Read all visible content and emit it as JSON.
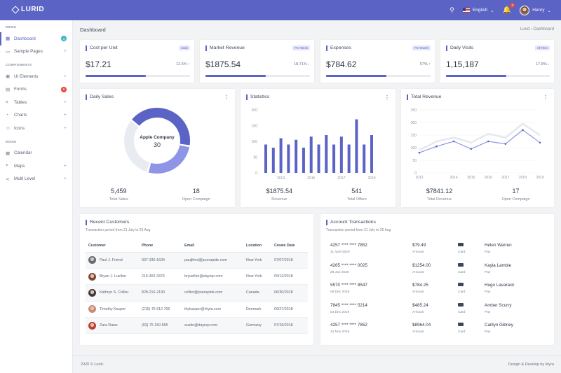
{
  "app": {
    "name": "LURID"
  },
  "topbar": {
    "language": "English",
    "notification_count": "3",
    "user": "Henry"
  },
  "sidebar": {
    "sections": [
      {
        "title": "MENU",
        "items": [
          {
            "label": "Dashboard",
            "icon": "grid-icon",
            "pill": "3",
            "pill_color": "#36b9cc"
          },
          {
            "label": "Sample Pages",
            "icon": "file-icon",
            "right": "+"
          }
        ]
      },
      {
        "title": "COMPONENTS",
        "items": [
          {
            "label": "UI Elements",
            "icon": "briefcase-icon",
            "right": "+"
          },
          {
            "label": "Forms",
            "icon": "clipboard-icon",
            "pill": "6",
            "pill_color": "#e74c3c"
          },
          {
            "label": "Tables",
            "icon": "list-icon",
            "right": "+"
          },
          {
            "label": "Charts",
            "icon": "pie-chart-icon",
            "right": "+"
          },
          {
            "label": "Icons",
            "icon": "smile-icon",
            "right": "+"
          }
        ]
      },
      {
        "title": "MORE",
        "items": [
          {
            "label": "Calendar",
            "icon": "calendar-icon"
          },
          {
            "label": "Maps",
            "icon": "map-icon",
            "right": "+"
          },
          {
            "label": "Multi Level",
            "icon": "share-icon",
            "right": "+"
          }
        ]
      }
    ]
  },
  "page": {
    "title": "Dashboard",
    "breadcrumb": [
      "Lurid",
      "Dashboard"
    ]
  },
  "stats": [
    {
      "title": "Cost per Unit",
      "badge": "Daily",
      "value": "$17.21",
      "pct": "12.5%",
      "trend": "up",
      "progress": 0.58
    },
    {
      "title": "Market Revenue",
      "badge": "Per Week",
      "value": "$1875.54",
      "pct": "18.71%",
      "trend": "down",
      "progress": 0.58
    },
    {
      "title": "Expenses",
      "badge": "Per Month",
      "value": "$784.62",
      "pct": "57%",
      "trend": "up",
      "progress": 0.58
    },
    {
      "title": "Daily Visits",
      "badge": "All Time",
      "value": "1,15,187",
      "pct": "17.8%",
      "trend": "down",
      "progress": 0.58
    }
  ],
  "daily_sales": {
    "title": "Daily Sales",
    "center_label": "Apple Company",
    "center_value": "30",
    "foot": [
      {
        "num": "5,459",
        "label": "Total Sales"
      },
      {
        "num": "18",
        "label": "Open Compaign"
      }
    ]
  },
  "statistics": {
    "title": "Statistics",
    "foot": [
      {
        "num": "$1875.54",
        "label": "Revenue"
      },
      {
        "num": "541",
        "label": "Total Offers"
      }
    ]
  },
  "total_revenue": {
    "title": "Total Revenue",
    "foot": [
      {
        "num": "$7841.12",
        "label": "Total Revenue"
      },
      {
        "num": "17",
        "label": "Open Compaign"
      }
    ]
  },
  "chart_data": [
    {
      "type": "pie",
      "title": "Daily Sales",
      "values": [
        42,
        27,
        31
      ],
      "colors": [
        "#5b63c5",
        "#8f95e6",
        "#e9ebf3"
      ]
    },
    {
      "type": "bar",
      "title": "Statistics",
      "x": [
        2012,
        2012.5,
        2013,
        2013.5,
        2014,
        2014.5,
        2015,
        2015.5,
        2016,
        2016.5,
        2017,
        2017.5,
        2018,
        2018.5,
        2019
      ],
      "values": [
        90,
        80,
        110,
        90,
        105,
        80,
        115,
        90,
        120,
        90,
        115,
        90,
        170,
        90,
        120
      ],
      "xticks": [
        2013,
        2015,
        2017,
        2019
      ],
      "yticks": [
        0,
        50,
        100,
        150,
        200
      ],
      "ylim": [
        0,
        200
      ],
      "color": "#5b63c5"
    },
    {
      "type": "line",
      "title": "Total Revenue",
      "x": [
        2012,
        2013,
        2014,
        2015,
        2016,
        2017,
        2018,
        2019
      ],
      "series": [
        {
          "values": [
            90,
            125,
            140,
            120,
            155,
            140,
            195,
            150
          ],
          "color": "#e6e8ee"
        },
        {
          "values": [
            80,
            105,
            125,
            95,
            125,
            115,
            170,
            120
          ],
          "color": "#8f95e6"
        }
      ],
      "xticks": [
        2012,
        2014,
        2015,
        2016,
        2017,
        2018,
        2019
      ],
      "yticks": [
        0,
        50,
        100,
        150,
        200,
        250
      ],
      "ylim": [
        0,
        250
      ]
    }
  ],
  "customers": {
    "title": "Recent Customers",
    "subtitle": "Transaction period from 21 July to 25 Aug",
    "columns": [
      "Customer",
      "Phone",
      "Email",
      "Location",
      "Create Date"
    ],
    "rows": [
      {
        "name": "Paul J. Friend",
        "phone": "937-330-1634",
        "email": "pauljfrnd@jourrapide.com",
        "location": "New York",
        "date": "07/07/2018",
        "color": "#5d6e7e"
      },
      {
        "name": "Bryan J. Luellen",
        "phone": "215-302-3376",
        "email": "bryuellen@dayrep.com",
        "location": "New York",
        "date": "09/12/2018",
        "color": "#7a4b3a"
      },
      {
        "name": "Kathryn S. Collier",
        "phone": "828-216-2190",
        "email": "collier@jourrapide.com",
        "location": "Canada",
        "date": "06/30/2018",
        "color": "#3e3b42"
      },
      {
        "name": "Timothy Kauper",
        "phone": "(216) 75 612 706",
        "email": "thykauper@rhyta.com",
        "location": "Denmark",
        "date": "09/27/2018",
        "color": "#c98a7a"
      },
      {
        "name": "Zara Raws",
        "phone": "(02) 75 150 655",
        "email": "austin@dayrep.com",
        "location": "Germany",
        "date": "07/15/2018",
        "color": "#b8413a"
      }
    ]
  },
  "transactions": {
    "title": "Account Transactions",
    "subtitle": "Transaction period from 21 July to 25 Aug",
    "rows": [
      {
        "card": "4257 **** **** 7852",
        "date": "11 April 2020",
        "amount": "$79.49",
        "amount_label": "Amount",
        "type": "Card",
        "name": "Helen Warren",
        "action": "Pay"
      },
      {
        "card": "4265 **** **** 0025",
        "date": "28 Jan 2020",
        "amount": "$1254.00",
        "amount_label": "Amount",
        "type": "Card",
        "name": "Kayla Lambie",
        "action": "Pay"
      },
      {
        "card": "5570 **** **** 8547",
        "date": "08 Dec 2019",
        "amount": "$784.25",
        "amount_label": "Amount",
        "type": "Card",
        "name": "Hugo Lavarack",
        "action": "Pay"
      },
      {
        "card": "7845 **** **** 5214",
        "date": "03 Dec 2019",
        "amount": "$485.24",
        "amount_label": "Amount",
        "type": "Card",
        "name": "Amber Scurry",
        "action": "Pay"
      },
      {
        "card": "4257 **** **** 7852",
        "date": "12 Nov 2019",
        "amount": "$8964.04",
        "amount_label": "Amount",
        "type": "Card",
        "name": "Caitlyn Gibney",
        "action": "Pay"
      }
    ]
  },
  "footer": {
    "left": "2020 © Lurid.",
    "right": "Design & Develop by Myra"
  }
}
